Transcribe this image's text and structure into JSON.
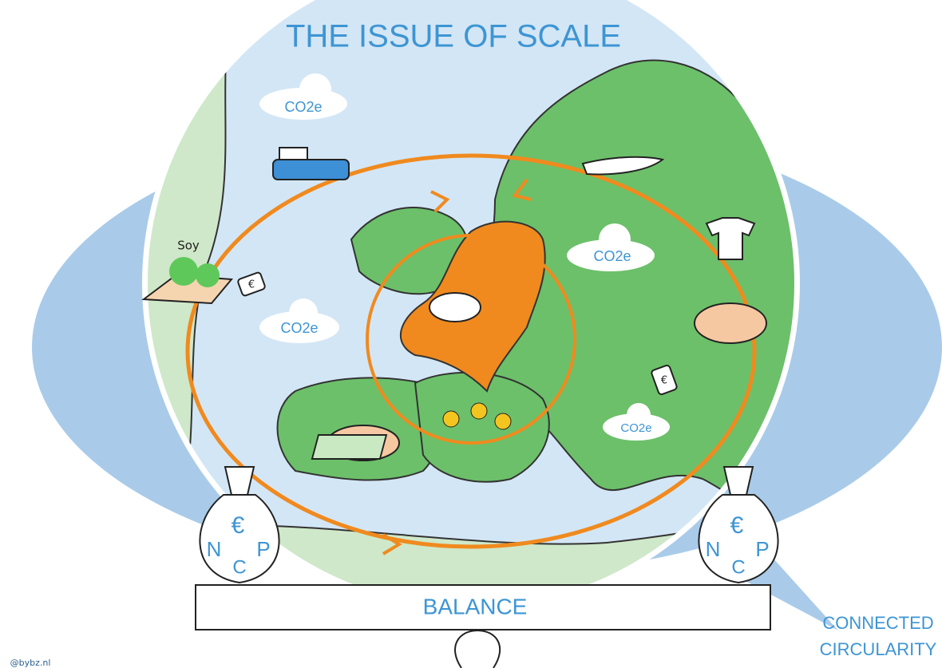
{
  "title": "THE ISSUE OF SCALE",
  "labels": {
    "soy": "Soy"
  },
  "clouds": [
    "CO2e",
    "CO2e",
    "CO2e",
    "CO2e"
  ],
  "price_tags": [
    "€",
    "€"
  ],
  "bags": [
    {
      "letters": [
        "N",
        "€",
        "P",
        "C"
      ]
    },
    {
      "letters": [
        "N",
        "€",
        "P",
        "C"
      ]
    }
  ],
  "balance": "BALANCE",
  "footer": {
    "line1": "CONNECTED",
    "line2": "CIRCULARITY"
  },
  "credit": "@bybz.nl"
}
